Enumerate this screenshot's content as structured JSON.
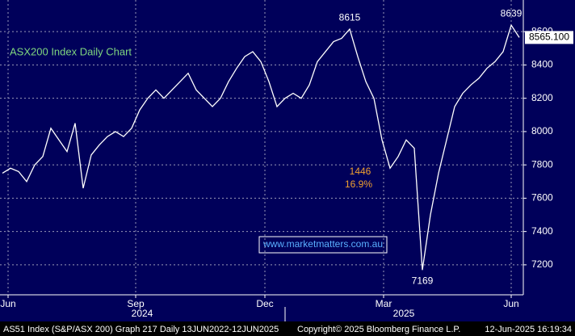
{
  "chart_data": {
    "type": "line",
    "title": "ASX200 Index Daily Chart",
    "values": [
      7750,
      7780,
      7760,
      7700,
      7800,
      7850,
      8020,
      7950,
      7880,
      8050,
      7660,
      7860,
      7920,
      7970,
      8000,
      7970,
      8020,
      8130,
      8200,
      8250,
      8200,
      8250,
      8300,
      8350,
      8250,
      8200,
      8150,
      8200,
      8300,
      8380,
      8450,
      8480,
      8420,
      8300,
      8150,
      8200,
      8230,
      8200,
      8280,
      8420,
      8480,
      8540,
      8560,
      8615,
      8450,
      8300,
      8200,
      7950,
      7780,
      7850,
      7950,
      7900,
      7169,
      7500,
      7750,
      7950,
      8150,
      8230,
      8280,
      8320,
      8380,
      8420,
      8480,
      8639,
      8565
    ],
    "color": "#ffffff",
    "xlim": [
      0,
      64.8
    ],
    "xticks": [
      {
        "value": 1,
        "label": "Jun"
      },
      {
        "value": 16.8,
        "label": "Sep"
      },
      {
        "value": 32.8,
        "label": "Dec"
      },
      {
        "value": 47.5,
        "label": "Mar"
      },
      {
        "value": 63.3,
        "label": "Jun"
      }
    ],
    "year_labels": [
      {
        "value": 17.6,
        "label": "2024"
      },
      {
        "value": 50,
        "label": "2025"
      }
    ],
    "ylim": [
      7020,
      8790
    ],
    "yticks": [
      7200,
      7400,
      7600,
      7800,
      8000,
      8200,
      8400,
      8600
    ],
    "grid": true,
    "last_price_label": "8565.100",
    "annotations": [
      {
        "x": 43,
        "value": 8615,
        "text": "8615",
        "place": "above"
      },
      {
        "x": 52,
        "value": 7169,
        "text": "7169",
        "place": "below"
      },
      {
        "x": 63,
        "value": 8639,
        "text": "8639",
        "place": "above"
      }
    ],
    "move_labels": [
      "1446",
      "16.9%"
    ],
    "watermark": "www.marketmatters.com.au",
    "footer": [
      "AS51 Index (S&P/ASX 200) Graph 217  Daily 13JUN2022-12JUN2025",
      "Copyright© 2025 Bloomberg Finance L.P.",
      "12-Jun-2025 16:19:34"
    ]
  }
}
